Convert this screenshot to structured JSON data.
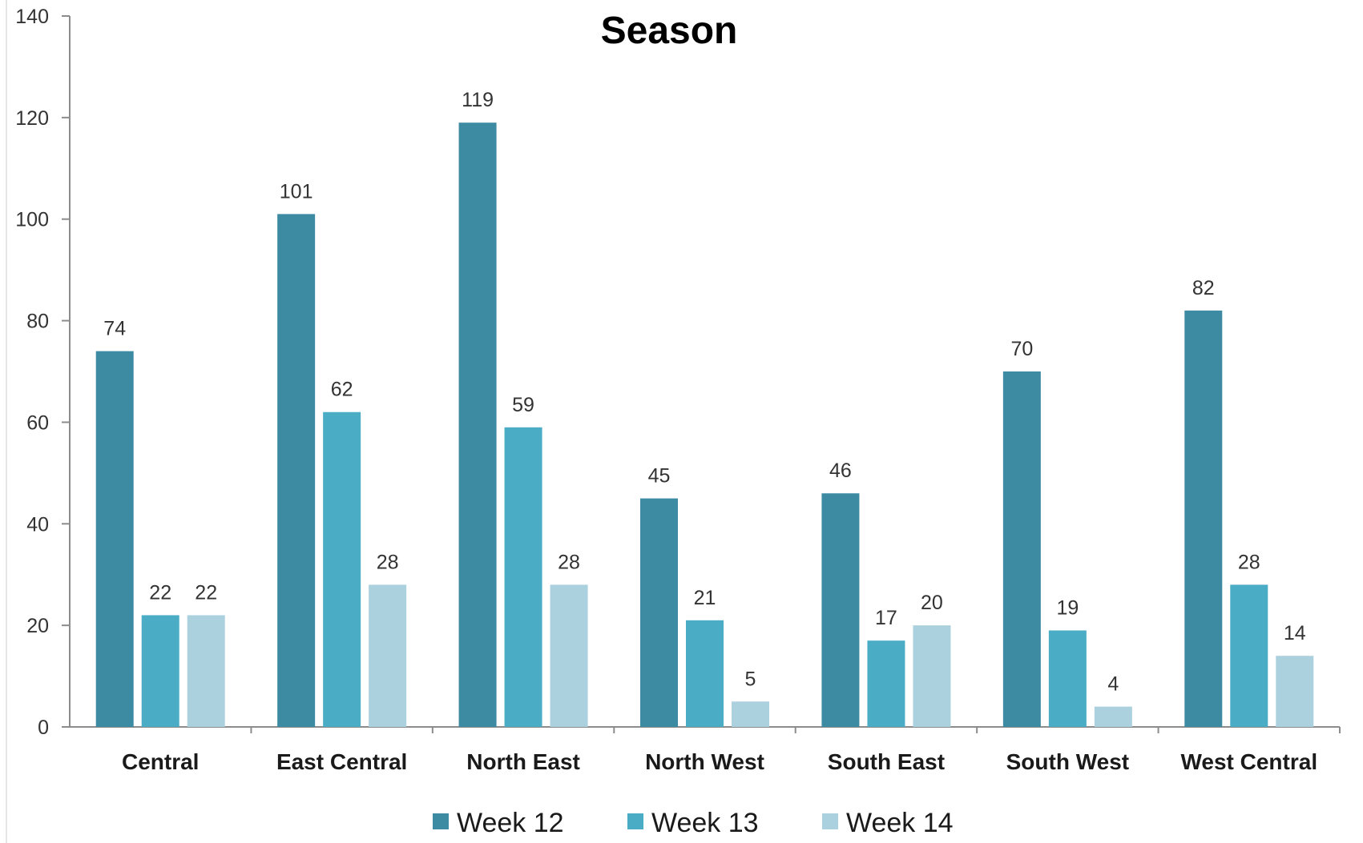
{
  "chart_data": {
    "type": "bar",
    "title": "Season",
    "xlabel": "",
    "ylabel": "",
    "ylim": [
      0,
      140
    ],
    "yticks": [
      0,
      20,
      40,
      60,
      80,
      100,
      120,
      140
    ],
    "grid": false,
    "legend_position": "bottom",
    "categories": [
      "Central",
      "East Central",
      "North East",
      "North West",
      "South East",
      "South West",
      "West Central"
    ],
    "series": [
      {
        "name": "Week 12",
        "color": "#3d8ba3",
        "values": [
          74,
          101,
          119,
          45,
          46,
          70,
          82
        ]
      },
      {
        "name": "Week 13",
        "color": "#4bacc6",
        "values": [
          22,
          62,
          59,
          21,
          17,
          19,
          28
        ]
      },
      {
        "name": "Week 14",
        "color": "#abd0de",
        "values": [
          22,
          28,
          28,
          5,
          20,
          4,
          14
        ]
      }
    ],
    "data_labels": true
  }
}
